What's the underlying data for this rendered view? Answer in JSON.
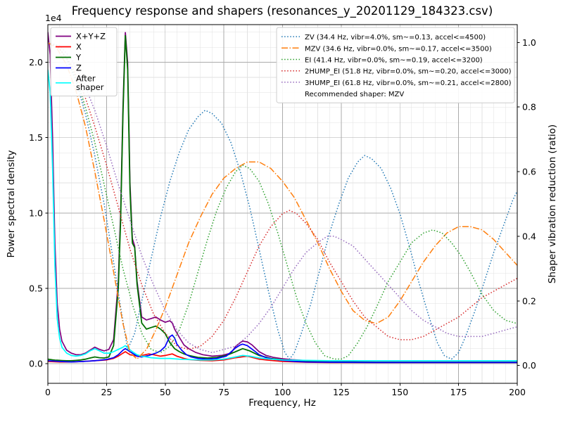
{
  "title": "Frequency response and shapers (resonances_y_20201129_184323.csv)",
  "axes": {
    "x": {
      "label": "Frequency, Hz",
      "range": [
        0,
        200
      ],
      "ticks": [
        0,
        25,
        50,
        75,
        100,
        125,
        150,
        175,
        200
      ],
      "tick_labels": [
        "0",
        "25",
        "50",
        "75",
        "100",
        "125",
        "150",
        "175",
        "200"
      ],
      "minor_step": 5
    },
    "y_left": {
      "label": "Power spectral density",
      "offset_text": "1e4",
      "range": [
        -1300,
        22500
      ],
      "ticks": [
        0,
        5000,
        10000,
        15000,
        20000
      ],
      "tick_labels": [
        "0.0",
        "0.5",
        "1.0",
        "1.5",
        "2.0"
      ],
      "minor_step": 1000
    },
    "y_right": {
      "label": "Shaper vibration reduction (ratio)",
      "range": [
        -0.055,
        1.055
      ],
      "ticks": [
        0,
        0.2,
        0.4,
        0.6,
        0.8,
        1.0
      ],
      "tick_labels": [
        "0.0",
        "0.2",
        "0.4",
        "0.6",
        "0.8",
        "1.0"
      ]
    }
  },
  "legends": {
    "psd": {
      "items": [
        {
          "label": "X+Y+Z",
          "series": "sum"
        },
        {
          "label": "X",
          "series": "x"
        },
        {
          "label": "Y",
          "series": "y"
        },
        {
          "label": "Z",
          "series": "z"
        },
        {
          "label": "After\nshaper",
          "series": "after"
        }
      ]
    },
    "shapers": {
      "items": [
        {
          "label": "ZV (34.4 Hz, vibr=4.0%, sm~=0.13, accel<=4500)",
          "series": "zv"
        },
        {
          "label": "MZV (34.6 Hz, vibr=0.0%, sm~=0.17, accel<=3500)",
          "series": "mzv"
        },
        {
          "label": "EI (41.4 Hz, vibr=0.0%, sm~=0.19, accel<=3200)",
          "series": "ei"
        },
        {
          "label": "2HUMP_EI (51.8 Hz, vibr=0.0%, sm~=0.20, accel<=3000)",
          "series": "2hump_ei"
        },
        {
          "label": "3HUMP_EI (61.8 Hz, vibr=0.0%, sm~=0.21, accel<=2800)",
          "series": "3hump_ei"
        }
      ],
      "note": "Recommended shaper: MZV"
    }
  },
  "chart_data": {
    "type": "line",
    "x_unit": "Hz",
    "y_left_unit": "power spectral density (x 1e4)",
    "y_right_unit": "vibration reduction ratio",
    "series": [
      {
        "id": "sum",
        "name": "X+Y+Z",
        "axis": "left",
        "color": "#800080",
        "style": "solid",
        "width": 1.7,
        "x": [
          0,
          1,
          2,
          3,
          4,
          5,
          6,
          8,
          10,
          12,
          14,
          16,
          18,
          20,
          22,
          24,
          26,
          28,
          30,
          31,
          32,
          33,
          34,
          35,
          36,
          37,
          38,
          40,
          42,
          44,
          46,
          48,
          50,
          51,
          52,
          53,
          54,
          56,
          58,
          60,
          63,
          66,
          70,
          74,
          78,
          80,
          82,
          83,
          85,
          87,
          90,
          93,
          96,
          100,
          104,
          108,
          112,
          120,
          130,
          140,
          160,
          180,
          200
        ],
        "y": [
          22000,
          20500,
          15000,
          8000,
          4000,
          2300,
          1500,
          900,
          700,
          600,
          600,
          700,
          900,
          1100,
          950,
          850,
          950,
          1600,
          5500,
          10000,
          17000,
          22000,
          20000,
          12000,
          8300,
          7800,
          5500,
          3100,
          2900,
          3000,
          3100,
          2900,
          2750,
          2800,
          2850,
          2700,
          2300,
          1750,
          1250,
          1000,
          750,
          600,
          500,
          550,
          700,
          1150,
          1400,
          1500,
          1450,
          1250,
          800,
          550,
          420,
          330,
          270,
          230,
          200,
          160,
          130,
          110,
          100,
          100,
          100
        ]
      },
      {
        "id": "x",
        "name": "X",
        "axis": "left",
        "color": "#ff0000",
        "style": "solid",
        "width": 1.7,
        "x": [
          0,
          5,
          10,
          15,
          20,
          25,
          28,
          30,
          32,
          33,
          35,
          38,
          40,
          43,
          45,
          48,
          50,
          53,
          55,
          58,
          60,
          65,
          70,
          75,
          80,
          85,
          90,
          95,
          100,
          110,
          120,
          140,
          160,
          180,
          200
        ],
        "y": [
          150,
          120,
          120,
          150,
          200,
          250,
          350,
          500,
          700,
          800,
          600,
          500,
          550,
          650,
          600,
          500,
          550,
          650,
          500,
          350,
          280,
          220,
          200,
          250,
          400,
          500,
          300,
          220,
          150,
          100,
          80,
          80,
          80,
          80,
          80
        ]
      },
      {
        "id": "y",
        "name": "Y",
        "axis": "left",
        "color": "#007000",
        "style": "solid",
        "width": 1.8,
        "x": [
          0,
          1,
          2,
          3,
          4,
          5,
          6,
          8,
          10,
          12,
          14,
          16,
          18,
          20,
          22,
          24,
          26,
          28,
          30,
          31,
          32,
          33,
          34,
          35,
          36,
          37,
          38,
          40,
          42,
          44,
          46,
          48,
          50,
          52,
          54,
          56,
          58,
          60,
          64,
          68,
          72,
          76,
          80,
          83,
          86,
          90,
          95,
          100,
          110,
          120,
          140,
          160,
          180,
          200
        ],
        "y": [
          300,
          280,
          260,
          240,
          230,
          220,
          210,
          200,
          200,
          220,
          250,
          300,
          380,
          450,
          400,
          380,
          450,
          1200,
          5000,
          9500,
          16500,
          21800,
          19500,
          11500,
          8000,
          7700,
          5300,
          2700,
          2300,
          2400,
          2500,
          2300,
          2000,
          1400,
          1000,
          800,
          650,
          550,
          420,
          380,
          420,
          550,
          800,
          1000,
          850,
          550,
          350,
          250,
          150,
          120,
          100,
          100,
          100,
          100
        ]
      },
      {
        "id": "z",
        "name": "Z",
        "axis": "left",
        "color": "#0000ff",
        "style": "solid",
        "width": 1.7,
        "x": [
          0,
          5,
          10,
          15,
          20,
          25,
          28,
          30,
          32,
          33,
          35,
          38,
          40,
          43,
          46,
          48,
          50,
          51,
          52,
          53,
          54,
          55,
          57,
          59,
          61,
          64,
          68,
          72,
          76,
          80,
          82,
          83,
          85,
          88,
          90,
          93,
          96,
          100,
          105,
          110,
          120,
          140,
          160,
          180,
          200
        ],
        "y": [
          200,
          150,
          120,
          150,
          200,
          280,
          400,
          600,
          900,
          1000,
          800,
          500,
          450,
          550,
          700,
          850,
          1150,
          1500,
          1800,
          1900,
          1700,
          1300,
          900,
          600,
          450,
          350,
          300,
          350,
          500,
          1050,
          1250,
          1300,
          1200,
          850,
          600,
          400,
          300,
          220,
          150,
          120,
          100,
          80,
          80,
          80,
          80
        ]
      },
      {
        "id": "after",
        "name": "After shaper",
        "axis": "left",
        "color": "#00ffff",
        "style": "solid",
        "width": 1.7,
        "x": [
          0,
          1,
          2,
          3,
          4,
          5,
          6,
          8,
          10,
          12,
          14,
          16,
          18,
          20,
          22,
          24,
          26,
          28,
          30,
          32,
          33,
          34,
          36,
          38,
          40,
          44,
          48,
          52,
          56,
          60,
          65,
          70,
          75,
          80,
          83,
          86,
          90,
          95,
          100,
          110,
          120,
          140,
          160,
          180,
          200
        ],
        "y": [
          19500,
          18000,
          13000,
          6500,
          3000,
          1700,
          1100,
          700,
          550,
          500,
          550,
          650,
          850,
          1000,
          850,
          700,
          700,
          800,
          950,
          1100,
          1200,
          1050,
          800,
          600,
          500,
          400,
          350,
          350,
          300,
          280,
          250,
          250,
          300,
          450,
          550,
          500,
          380,
          300,
          250,
          220,
          200,
          200,
          200,
          200,
          200
        ]
      },
      {
        "id": "zv",
        "name": "ZV",
        "axis": "right",
        "color": "#1f77b4",
        "style": "dotted",
        "width": 1.5,
        "x": [
          0,
          4,
          8,
          12,
          16,
          20,
          24,
          28,
          31,
          34,
          37,
          40,
          44,
          48,
          52,
          56,
          60,
          64,
          67,
          70,
          74,
          78,
          82,
          86,
          90,
          94,
          98,
          101,
          103,
          105,
          108,
          112,
          116,
          120,
          124,
          128,
          132,
          135,
          138,
          142,
          146,
          150,
          154,
          158,
          162,
          166,
          169,
          172,
          175,
          178,
          182,
          186,
          190,
          194,
          198,
          200
        ],
        "y": [
          1.0,
          0.99,
          0.95,
          0.88,
          0.78,
          0.65,
          0.5,
          0.32,
          0.18,
          0.05,
          0.1,
          0.2,
          0.33,
          0.46,
          0.57,
          0.66,
          0.73,
          0.77,
          0.79,
          0.78,
          0.75,
          0.69,
          0.6,
          0.49,
          0.36,
          0.23,
          0.11,
          0.04,
          0.02,
          0.04,
          0.1,
          0.19,
          0.3,
          0.41,
          0.5,
          0.58,
          0.63,
          0.65,
          0.64,
          0.61,
          0.55,
          0.47,
          0.37,
          0.26,
          0.16,
          0.07,
          0.03,
          0.02,
          0.04,
          0.09,
          0.17,
          0.26,
          0.35,
          0.43,
          0.51,
          0.54
        ]
      },
      {
        "id": "mzv",
        "name": "MZV",
        "axis": "right",
        "color": "#ff7f0e",
        "style": "dashdot",
        "width": 1.5,
        "x": [
          0,
          4,
          8,
          12,
          16,
          20,
          24,
          28,
          32,
          35,
          38,
          42,
          46,
          50,
          55,
          60,
          65,
          70,
          75,
          80,
          85,
          90,
          95,
          100,
          105,
          110,
          115,
          120,
          125,
          130,
          135,
          140,
          145,
          150,
          155,
          160,
          165,
          170,
          175,
          180,
          185,
          190,
          195,
          200
        ],
        "y": [
          1.0,
          0.98,
          0.93,
          0.85,
          0.74,
          0.6,
          0.45,
          0.29,
          0.13,
          0.04,
          0.02,
          0.05,
          0.11,
          0.18,
          0.28,
          0.38,
          0.46,
          0.53,
          0.58,
          0.61,
          0.63,
          0.63,
          0.61,
          0.57,
          0.52,
          0.45,
          0.38,
          0.3,
          0.23,
          0.17,
          0.14,
          0.13,
          0.15,
          0.2,
          0.26,
          0.32,
          0.37,
          0.41,
          0.43,
          0.43,
          0.42,
          0.39,
          0.35,
          0.31
        ]
      },
      {
        "id": "ei",
        "name": "EI",
        "axis": "right",
        "color": "#2ca02c",
        "style": "dotted",
        "width": 1.5,
        "x": [
          0,
          4,
          8,
          12,
          16,
          20,
          24,
          28,
          32,
          36,
          40,
          44,
          48,
          52,
          56,
          60,
          64,
          68,
          72,
          76,
          80,
          83,
          86,
          90,
          94,
          98,
          102,
          106,
          110,
          114,
          118,
          122,
          125,
          128,
          132,
          136,
          140,
          145,
          150,
          155,
          160,
          164,
          168,
          172,
          176,
          180,
          185,
          190,
          195,
          200
        ],
        "y": [
          1.0,
          0.99,
          0.95,
          0.89,
          0.8,
          0.69,
          0.56,
          0.43,
          0.3,
          0.19,
          0.1,
          0.05,
          0.04,
          0.06,
          0.11,
          0.19,
          0.29,
          0.39,
          0.48,
          0.55,
          0.6,
          0.62,
          0.61,
          0.57,
          0.5,
          0.41,
          0.31,
          0.21,
          0.13,
          0.07,
          0.03,
          0.02,
          0.02,
          0.03,
          0.07,
          0.12,
          0.18,
          0.26,
          0.32,
          0.38,
          0.41,
          0.42,
          0.41,
          0.38,
          0.34,
          0.29,
          0.22,
          0.17,
          0.14,
          0.13
        ]
      },
      {
        "id": "2hump_ei",
        "name": "2HUMP_EI",
        "axis": "right",
        "color": "#d62728",
        "style": "dotted",
        "width": 1.5,
        "x": [
          0,
          5,
          10,
          15,
          20,
          25,
          30,
          35,
          40,
          45,
          50,
          55,
          60,
          65,
          70,
          75,
          80,
          85,
          90,
          95,
          100,
          103,
          106,
          110,
          115,
          120,
          125,
          130,
          135,
          140,
          145,
          150,
          155,
          160,
          165,
          170,
          175,
          180,
          185,
          190,
          195,
          200
        ],
        "y": [
          1.0,
          0.98,
          0.93,
          0.85,
          0.74,
          0.62,
          0.49,
          0.36,
          0.25,
          0.16,
          0.1,
          0.06,
          0.05,
          0.06,
          0.09,
          0.14,
          0.21,
          0.29,
          0.37,
          0.43,
          0.47,
          0.48,
          0.47,
          0.44,
          0.39,
          0.32,
          0.26,
          0.2,
          0.15,
          0.12,
          0.09,
          0.08,
          0.08,
          0.09,
          0.11,
          0.13,
          0.15,
          0.18,
          0.21,
          0.23,
          0.25,
          0.27
        ]
      },
      {
        "id": "3hump_ei",
        "name": "3HUMP_EI",
        "axis": "right",
        "color": "#9467bd",
        "style": "dotted",
        "width": 1.5,
        "x": [
          0,
          5,
          10,
          15,
          20,
          25,
          30,
          35,
          40,
          45,
          50,
          55,
          60,
          65,
          70,
          75,
          80,
          85,
          90,
          95,
          100,
          105,
          110,
          115,
          119,
          122,
          125,
          130,
          135,
          140,
          145,
          150,
          155,
          160,
          165,
          170,
          175,
          180,
          185,
          190,
          195,
          200
        ],
        "y": [
          1.0,
          0.99,
          0.95,
          0.88,
          0.79,
          0.68,
          0.56,
          0.45,
          0.34,
          0.25,
          0.17,
          0.11,
          0.07,
          0.05,
          0.04,
          0.05,
          0.06,
          0.09,
          0.13,
          0.18,
          0.24,
          0.3,
          0.35,
          0.38,
          0.4,
          0.4,
          0.39,
          0.37,
          0.33,
          0.29,
          0.25,
          0.21,
          0.17,
          0.14,
          0.12,
          0.1,
          0.09,
          0.09,
          0.09,
          0.1,
          0.11,
          0.12
        ]
      }
    ]
  }
}
